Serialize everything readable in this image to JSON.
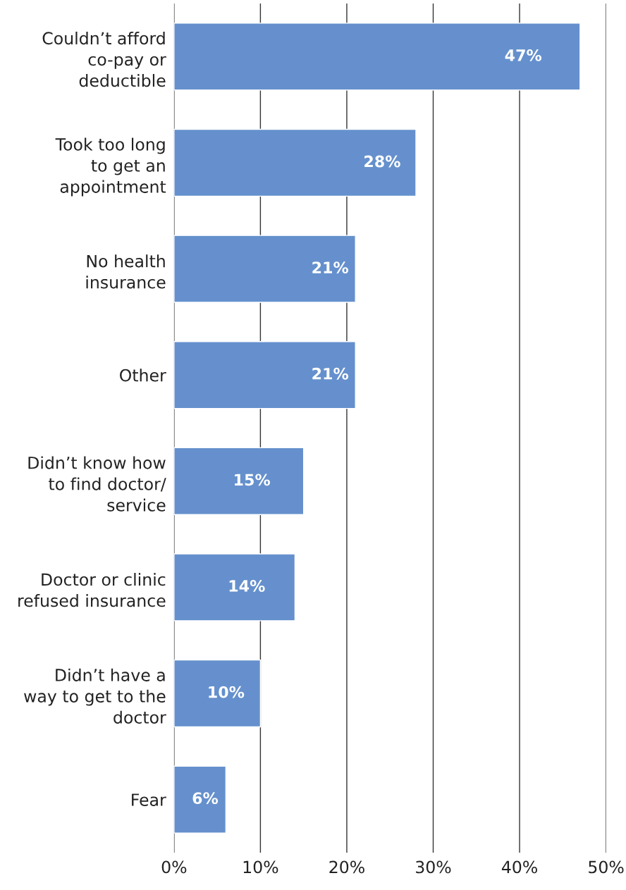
{
  "chart_data": {
    "type": "bar",
    "orientation": "horizontal",
    "categories": [
      "Couldn’t afford\nco-pay or\ndeductible",
      "Took too long\nto get an\nappointment",
      "No health\ninsurance",
      "Other",
      "Didn’t know how\nto find doctor/\nservice",
      "Doctor or clinic\nrefused insurance",
      "Didn’t have a\nway to get to the\ndoctor",
      "Fear"
    ],
    "values": [
      47,
      28,
      21,
      21,
      15,
      14,
      10,
      6
    ],
    "value_labels": [
      "47%",
      "28%",
      "21%",
      "21%",
      "15%",
      "14%",
      "10%",
      "6%"
    ],
    "color": "#6590cd",
    "xlim": [
      0,
      50
    ],
    "xticks": [
      {
        "value": 0,
        "label": "0%"
      },
      {
        "value": 10,
        "label": "10%"
      },
      {
        "value": 20,
        "label": "20%"
      },
      {
        "value": 30,
        "label": "30%"
      },
      {
        "value": 40,
        "label": "40%"
      },
      {
        "value": 50,
        "label": "50%"
      }
    ],
    "grid": "x",
    "legend": false
  }
}
